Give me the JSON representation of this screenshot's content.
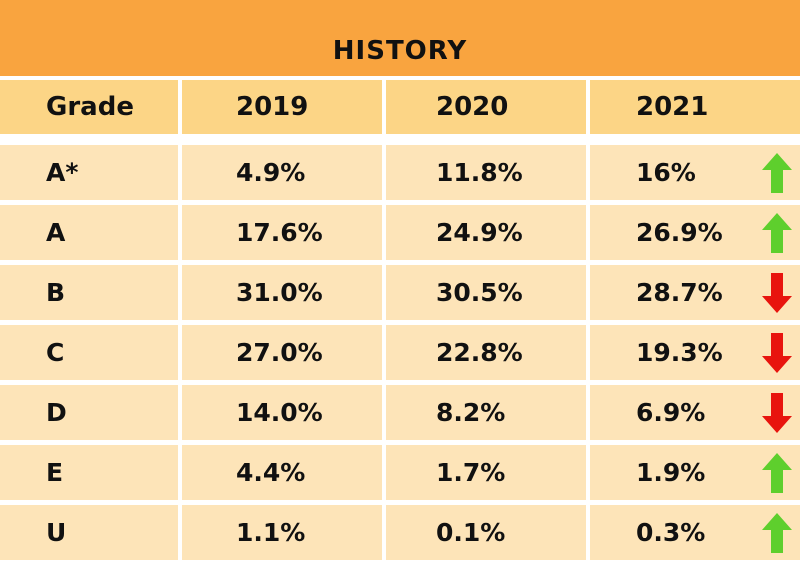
{
  "chart_data": {
    "type": "table",
    "title": "HISTORY",
    "columns": [
      "Grade",
      "2019",
      "2020",
      "2021"
    ],
    "rows": [
      {
        "grade": "A*",
        "y2019": "4.9%",
        "y2020": "11.8%",
        "y2021": "16%",
        "trend": "up"
      },
      {
        "grade": "A",
        "y2019": "17.6%",
        "y2020": "24.9%",
        "y2021": "26.9%",
        "trend": "up"
      },
      {
        "grade": "B",
        "y2019": "31.0%",
        "y2020": "30.5%",
        "y2021": "28.7%",
        "trend": "down"
      },
      {
        "grade": "C",
        "y2019": "27.0%",
        "y2020": "22.8%",
        "y2021": "19.3%",
        "trend": "down"
      },
      {
        "grade": "D",
        "y2019": "14.0%",
        "y2020": "8.2%",
        "y2021": "6.9%",
        "trend": "down"
      },
      {
        "grade": "E",
        "y2019": "4.4%",
        "y2020": "1.7%",
        "y2021": "1.9%",
        "trend": "up"
      },
      {
        "grade": "U",
        "y2019": "1.1%",
        "y2020": "0.1%",
        "y2021": "0.3%",
        "trend": "up"
      }
    ]
  },
  "colors": {
    "title_bg": "#f9a43f",
    "header_bg": "#fcd586",
    "cell_bg": "#fde4b8",
    "up_arrow": "#5ecf2d",
    "down_arrow": "#e8140e"
  },
  "icons": {
    "up": "arrow-up-icon",
    "down": "arrow-down-icon"
  }
}
